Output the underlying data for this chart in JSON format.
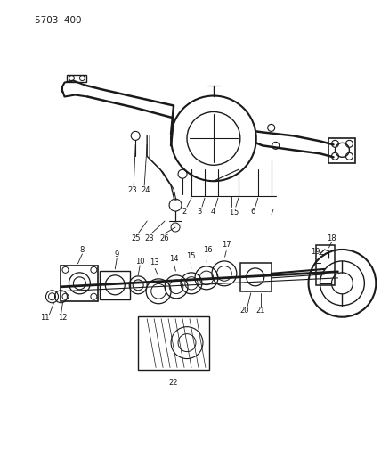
{
  "title": "5703  400",
  "background_color": "#ffffff",
  "line_color": "#1a1a1a",
  "text_color": "#1a1a1a",
  "fig_width": 4.28,
  "fig_height": 5.33,
  "dpi": 100
}
